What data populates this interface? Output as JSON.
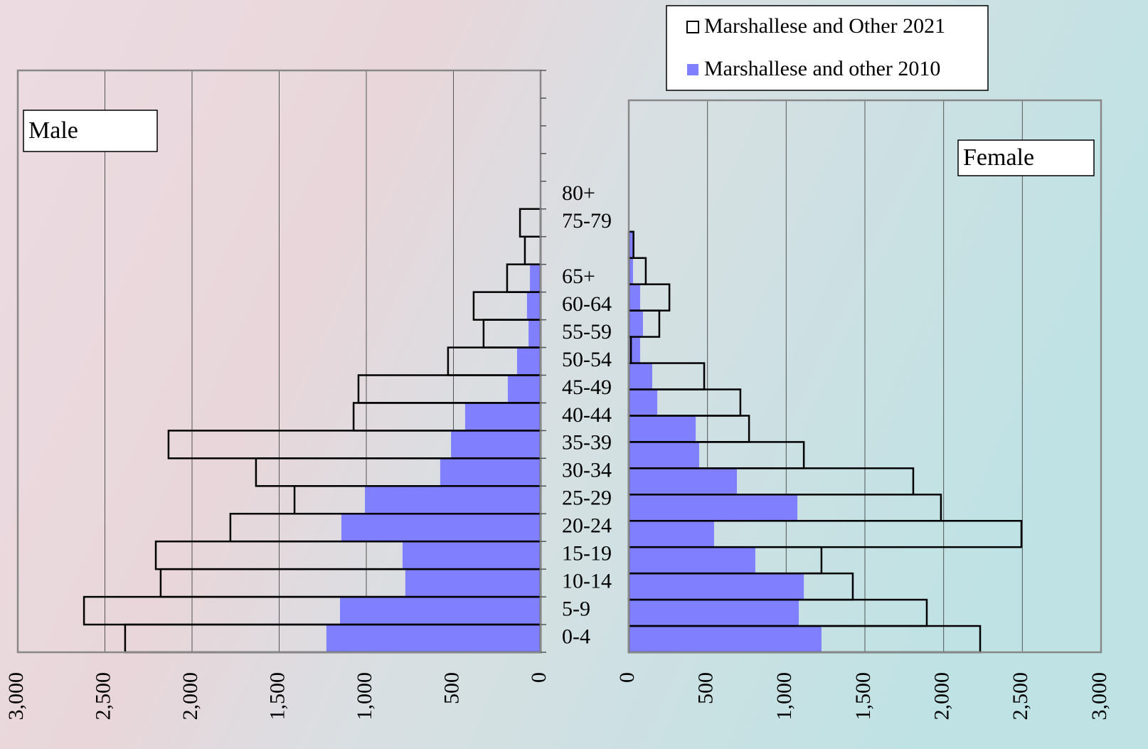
{
  "chart_data": {
    "type": "pyramid",
    "categories": [
      "0-4",
      "5-9",
      "10-14",
      "15-19",
      "20-24",
      "25-29",
      "30-34",
      "35-39",
      "40-44",
      "45-49",
      "50-54",
      "55-59",
      "60-64",
      "65+",
      null,
      "75-79",
      "80+",
      null,
      null,
      null,
      null
    ],
    "legend": [
      {
        "name": "Marshallese and Other 2021",
        "color": "none"
      },
      {
        "name": "Marshallese and other 2010",
        "color": "#8080ff"
      }
    ],
    "panels": [
      {
        "label": "Male",
        "reversed": true,
        "grid": true,
        "xlim": [
          0,
          3000
        ],
        "xticks": [
          0,
          500,
          {
            "value": 1000,
            "label": "1,000"
          },
          {
            "value": 1500,
            "label": "1,500"
          },
          {
            "value": 2000,
            "label": "2,000"
          },
          {
            "value": 2500,
            "label": "2,500"
          },
          {
            "value": 3000,
            "label": "3,000"
          }
        ],
        "series": [
          {
            "values": [
              2384,
              2620,
              2180,
              2208,
              1780,
              1412,
              1633,
              2135,
              1073,
              1045,
              531,
              327,
              384,
              192,
              90,
              118,
              null,
              null,
              null,
              null,
              null
            ]
          },
          {
            "values": [
              1229,
              1151,
              776,
              792,
              1143,
              1008,
              576,
              514,
              433,
              188,
              135,
              69,
              78,
              61,
              null,
              null,
              null,
              null,
              null,
              null,
              null
            ]
          }
        ]
      },
      {
        "label": "Female",
        "reversed": false,
        "grid": true,
        "xlim": [
          0,
          3000
        ],
        "xticks": [
          0,
          500,
          {
            "value": 1000,
            "label": "1,000"
          },
          {
            "value": 1500,
            "label": "1,500"
          },
          {
            "value": 2000,
            "label": "2,000"
          },
          {
            "value": 2500,
            "label": "2,500"
          },
          {
            "value": 3000,
            "label": "3,000"
          }
        ],
        "series": [
          {
            "values": [
              2232,
              1893,
              1423,
              1224,
              2494,
              1983,
              1807,
              1112,
              764,
              709,
              479,
              14,
              194,
              258,
              108,
              30,
              null,
              null,
              null,
              null,
              null
            ]
          },
          {
            "values": [
              1224,
              1080,
              1112,
              804,
              542,
              1071,
              687,
              447,
              425,
              181,
              149,
              72,
              90,
              72,
              27,
              35,
              null,
              null,
              null,
              null,
              null
            ]
          }
        ]
      }
    ]
  }
}
